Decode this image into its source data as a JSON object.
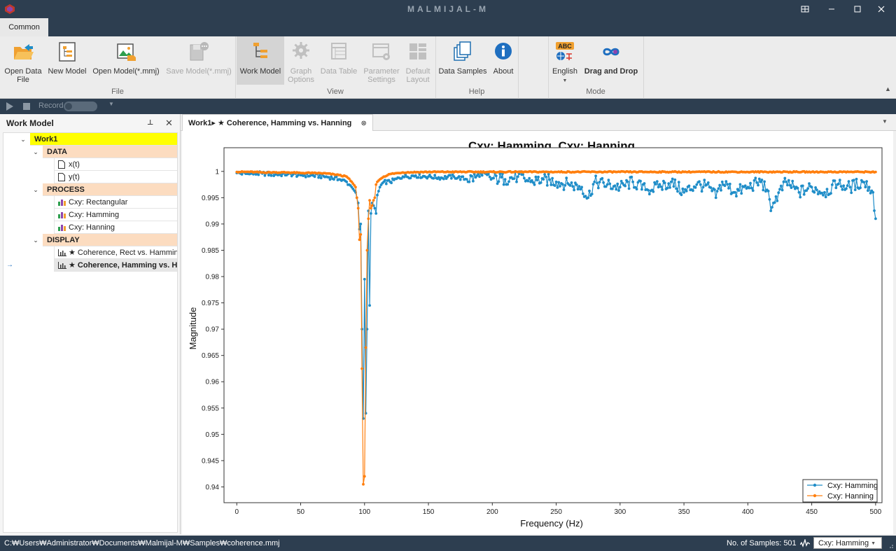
{
  "window": {
    "title": "MALMIJAL-M",
    "controls": [
      "restore-down",
      "minimize",
      "maximize",
      "close"
    ]
  },
  "ribbon": {
    "tab": "Common",
    "groups": {
      "file": "File",
      "view": "View",
      "help": "Help",
      "mode": "Mode"
    },
    "buttons": {
      "open_data_file": "Open Data\nFile",
      "new_model": "New Model",
      "open_model": "Open Model(*.mmj)",
      "save_model": "Save Model(*.mmj)",
      "work_model": "Work Model",
      "graph_options": "Graph\nOptions",
      "data_table": "Data Table",
      "parameter_settings": "Parameter\nSettings",
      "default_layout": "Default\nLayout",
      "data_samples": "Data Samples",
      "about": "About",
      "english": "English",
      "drag_and_drop": "Drag and Drop"
    },
    "language_badge": "ABC"
  },
  "toolbar": {
    "record_label": "Record"
  },
  "work_model": {
    "title": "Work Model",
    "root": "Work1",
    "data_header": "DATA",
    "data_items": [
      "x(t)",
      "y(t)"
    ],
    "process_header": "PROCESS",
    "process_items": [
      "Cxy: Rectangular",
      "Cxy: Hamming",
      "Cxy: Hanning"
    ],
    "display_header": "DISPLAY",
    "display_items": [
      "★ Coherence, Rect vs. Hamming",
      "★ Coherence, Hamming vs. Hanning"
    ]
  },
  "chart_tab": {
    "label": "Work1▸ ★ Coherence, Hamming vs. Hanning"
  },
  "colors": {
    "hamming": "#1f8dc8",
    "hanning": "#ff7f0e",
    "titlebar": "#2d3e50",
    "root_highlight": "#ffff00",
    "section_header": "#fcdcc0"
  },
  "chart_data": {
    "type": "line",
    "title": "Cxy: Hamming, Cxy: Hanning",
    "xlabel": "Frequency (Hz)",
    "ylabel": "Magnitude",
    "xlim": [
      -10,
      505
    ],
    "ylim": [
      0.937,
      1.0045
    ],
    "xticks": [
      0,
      50,
      100,
      150,
      200,
      250,
      300,
      350,
      400,
      450,
      500
    ],
    "yticks": [
      0.94,
      0.945,
      0.95,
      0.955,
      0.96,
      0.965,
      0.97,
      0.975,
      0.98,
      0.985,
      0.99,
      0.995,
      1
    ],
    "ytick_labels": [
      "0.94",
      "0.945",
      "0.95",
      "0.955",
      "0.96",
      "0.965",
      "0.97",
      "0.975",
      "0.98",
      "0.985",
      "0.99",
      "0.995",
      "1"
    ],
    "grid": true,
    "legend": "bottom-right",
    "series": [
      {
        "name": "Cxy: Hamming",
        "color": "#1f8dc8",
        "points": [
          [
            0,
            0.9997
          ],
          [
            10,
            0.9995
          ],
          [
            20,
            0.9996
          ],
          [
            30,
            0.9994
          ],
          [
            40,
            0.9995
          ],
          [
            50,
            0.9993
          ],
          [
            60,
            0.9992
          ],
          [
            70,
            0.999
          ],
          [
            80,
            0.9985
          ],
          [
            86,
            0.998
          ],
          [
            90,
            0.997
          ],
          [
            93,
            0.996
          ],
          [
            95,
            0.994
          ],
          [
            96,
            0.989
          ],
          [
            97,
            0.99
          ],
          [
            98,
            0.97
          ],
          [
            99,
            0.953
          ],
          [
            100,
            0.9795
          ],
          [
            101,
            0.954
          ],
          [
            102,
            0.97
          ],
          [
            103,
            0.9925
          ],
          [
            104,
            0.9745
          ],
          [
            105,
            0.992
          ],
          [
            106,
            0.994
          ],
          [
            107,
            0.9935
          ],
          [
            108,
            0.993
          ],
          [
            109,
            0.992
          ],
          [
            110,
            0.9955
          ],
          [
            112,
            0.997
          ],
          [
            115,
            0.998
          ],
          [
            120,
            0.998
          ],
          [
            130,
            0.999
          ],
          [
            140,
            0.9992
          ],
          [
            150,
            0.999
          ],
          [
            160,
            0.9988
          ],
          [
            170,
            0.999
          ],
          [
            180,
            0.9985
          ],
          [
            190,
            0.999
          ],
          [
            200,
            0.9987
          ],
          [
            210,
            0.9985
          ],
          [
            220,
            0.999
          ],
          [
            230,
            0.998
          ],
          [
            240,
            0.9985
          ],
          [
            250,
            0.998
          ],
          [
            260,
            0.9975
          ],
          [
            270,
            0.997
          ],
          [
            275,
            0.995
          ],
          [
            280,
            0.998
          ],
          [
            290,
            0.9975
          ],
          [
            300,
            0.997
          ],
          [
            310,
            0.998
          ],
          [
            320,
            0.9965
          ],
          [
            330,
            0.997
          ],
          [
            340,
            0.998
          ],
          [
            350,
            0.996
          ],
          [
            360,
            0.9975
          ],
          [
            370,
            0.997
          ],
          [
            375,
            0.995
          ],
          [
            380,
            0.998
          ],
          [
            390,
            0.996
          ],
          [
            400,
            0.997
          ],
          [
            410,
            0.998
          ],
          [
            415,
            0.9965
          ],
          [
            418,
            0.9925
          ],
          [
            420,
            0.994
          ],
          [
            430,
            0.998
          ],
          [
            440,
            0.996
          ],
          [
            450,
            0.997
          ],
          [
            460,
            0.996
          ],
          [
            470,
            0.9975
          ],
          [
            480,
            0.997
          ],
          [
            490,
            0.998
          ],
          [
            495,
            0.997
          ],
          [
            498,
            0.996
          ],
          [
            500,
            0.991
          ]
        ]
      },
      {
        "name": "Cxy: Hanning",
        "color": "#ff7f0e",
        "points": [
          [
            0,
            0.9999
          ],
          [
            10,
            0.9999
          ],
          [
            20,
            0.9998
          ],
          [
            30,
            0.9998
          ],
          [
            40,
            0.9998
          ],
          [
            50,
            0.9997
          ],
          [
            60,
            0.9997
          ],
          [
            70,
            0.9996
          ],
          [
            80,
            0.9993
          ],
          [
            86,
            0.999
          ],
          [
            90,
            0.998
          ],
          [
            93,
            0.997
          ],
          [
            95,
            0.993
          ],
          [
            96,
            0.987
          ],
          [
            97,
            0.988
          ],
          [
            98,
            0.9625
          ],
          [
            99,
            0.9405
          ],
          [
            100,
            0.942
          ],
          [
            101,
            0.9665
          ],
          [
            102,
            0.985
          ],
          [
            103,
            0.991
          ],
          [
            104,
            0.9945
          ],
          [
            105,
            0.993
          ],
          [
            106,
            0.9935
          ],
          [
            107,
            0.9945
          ],
          [
            108,
            0.995
          ],
          [
            109,
            0.9975
          ],
          [
            110,
            0.998
          ],
          [
            112,
            0.9985
          ],
          [
            115,
            0.999
          ],
          [
            120,
            0.9995
          ],
          [
            130,
            0.9998
          ],
          [
            150,
            0.9999
          ],
          [
            200,
            0.9999
          ],
          [
            250,
            0.9999
          ],
          [
            300,
            0.9999
          ],
          [
            350,
            0.9999
          ],
          [
            400,
            0.9999
          ],
          [
            450,
            0.9999
          ],
          [
            500,
            0.9999
          ]
        ]
      }
    ]
  },
  "statusbar": {
    "path": "C:₩Users₩Administrator₩Documents₩Malmijal-M₩Samples₩coherence.mmj",
    "samples": "No. of Samples: 501",
    "selected_series": "Cxy: Hamming"
  }
}
